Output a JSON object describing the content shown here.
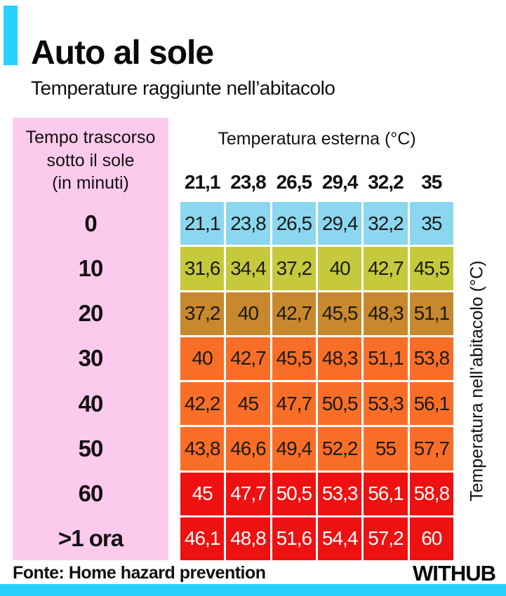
{
  "colors": {
    "accent_cyan": "#29d0fc",
    "panel_pink": "#fbcaec",
    "row_blue": "#8bd7ef",
    "row_green": "#c6c93c",
    "row_brown": "#c8882d",
    "row_orange": "#f96e27",
    "row_red": "#ee1111"
  },
  "header": {
    "title": "Auto al sole",
    "subtitle": "Temperature raggiunte nell’abitacolo"
  },
  "row_axis": {
    "title": "Tempo trascorso\nsotto il sole\n(in minuti)"
  },
  "col_axis": {
    "title": "Temperatura esterna (°C)"
  },
  "value_axis": {
    "title": "Temperatura nell’abitacolo (°C)"
  },
  "footer": {
    "source": "Fonte: Home hazard prevention",
    "brand": "WITHUB"
  },
  "chart_data": {
    "type": "heatmap",
    "title": "Auto al sole — Temperature raggiunte nell’abitacolo",
    "xlabel": "Temperatura esterna (°C)",
    "ylabel": "Tempo trascorso sotto il sole (in minuti)",
    "value_label": "Temperatura nell’abitacolo (°C)",
    "columns": [
      "21,1",
      "23,8",
      "26,5",
      "29,4",
      "32,2",
      "35"
    ],
    "rows": [
      {
        "label": "0",
        "values": [
          "21,1",
          "23,8",
          "26,5",
          "29,4",
          "32,2",
          "35"
        ],
        "color": "#8bd7ef",
        "text_color": "#1a1a1a"
      },
      {
        "label": "10",
        "values": [
          "31,6",
          "34,4",
          "37,2",
          "40",
          "42,7",
          "45,5"
        ],
        "color": "#c6c93c",
        "text_color": "#1a1a1a"
      },
      {
        "label": "20",
        "values": [
          "37,2",
          "40",
          "42,7",
          "45,5",
          "48,3",
          "51,1"
        ],
        "color": "#c8882d",
        "text_color": "#1a1a1a"
      },
      {
        "label": "30",
        "values": [
          "40",
          "42,7",
          "45,5",
          "48,3",
          "51,1",
          "53,8"
        ],
        "color": "#f96e27",
        "text_color": "#1a1a1a"
      },
      {
        "label": "40",
        "values": [
          "42,2",
          "45",
          "47,7",
          "50,5",
          "53,3",
          "56,1"
        ],
        "color": "#f96e27",
        "text_color": "#1a1a1a"
      },
      {
        "label": "50",
        "values": [
          "43,8",
          "46,6",
          "49,4",
          "52,2",
          "55",
          "57,7"
        ],
        "color": "#f96e27",
        "text_color": "#1a1a1a"
      },
      {
        "label": "60",
        "values": [
          "45",
          "47,7",
          "50,5",
          "53,3",
          "56,1",
          "58,8"
        ],
        "color": "#ee1111",
        "text_color": "#ffffff"
      },
      {
        "label": ">1 ora",
        "values": [
          "46,1",
          "48,8",
          "51,6",
          "54,4",
          "57,2",
          "60"
        ],
        "color": "#ee1111",
        "text_color": "#ffffff"
      }
    ]
  }
}
